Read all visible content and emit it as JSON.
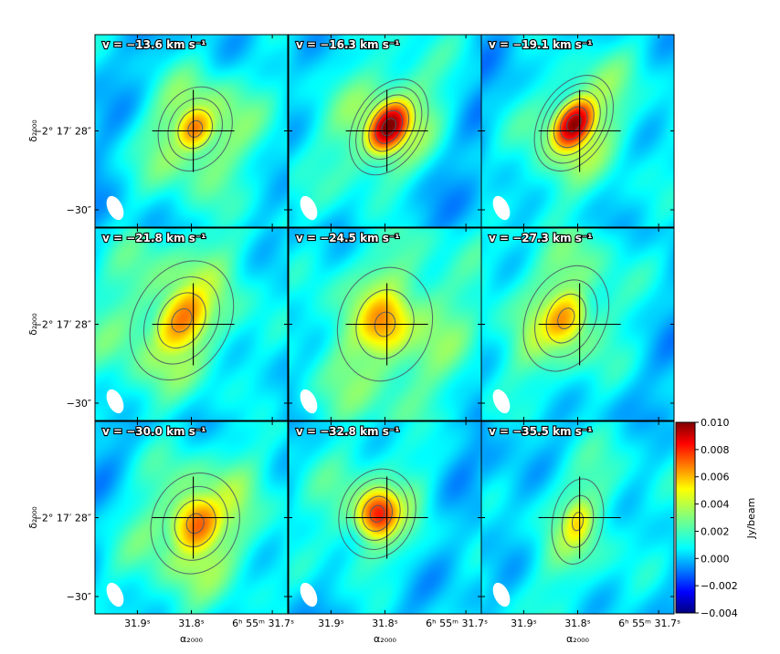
{
  "chart_data": {
    "type": "heatmap",
    "description_units": "channel maps, colour scale in Jy/beam",
    "panels": [
      {
        "label": "v = −13.6 km s⁻¹",
        "velocity_kms": -13.6,
        "peak": 0.0065,
        "peak_x": 0.52,
        "peak_y": 0.49,
        "ext_x": 0.09,
        "ext_y": 0.11,
        "angle": 25,
        "halo": 0.0035
      },
      {
        "label": "v = −16.3 km s⁻¹",
        "velocity_kms": -16.3,
        "peak": 0.0095,
        "peak_x": 0.52,
        "peak_y": 0.48,
        "ext_x": 0.08,
        "ext_y": 0.12,
        "angle": 30,
        "halo": 0.0035
      },
      {
        "label": "v = −19.1 km s⁻¹",
        "velocity_kms": -19.1,
        "peak": 0.0092,
        "peak_x": 0.48,
        "peak_y": 0.46,
        "ext_x": 0.08,
        "ext_y": 0.12,
        "angle": 30,
        "halo": 0.0035
      },
      {
        "label": "v = −21.8 km s⁻¹",
        "velocity_kms": -21.8,
        "peak": 0.0058,
        "peak_x": 0.45,
        "peak_y": 0.48,
        "ext_x": 0.12,
        "ext_y": 0.16,
        "angle": 30,
        "halo": 0.003
      },
      {
        "label": "v = −24.5 km s⁻¹",
        "velocity_kms": -24.5,
        "peak": 0.0052,
        "peak_x": 0.5,
        "peak_y": 0.5,
        "ext_x": 0.13,
        "ext_y": 0.16,
        "angle": 15,
        "halo": 0.003
      },
      {
        "label": "v = −27.3 km s⁻¹",
        "velocity_kms": -27.3,
        "peak": 0.0055,
        "peak_x": 0.44,
        "peak_y": 0.47,
        "ext_x": 0.1,
        "ext_y": 0.14,
        "angle": 25,
        "halo": 0.003
      },
      {
        "label": "v = −30.0 km s⁻¹",
        "velocity_kms": -30.0,
        "peak": 0.0065,
        "peak_x": 0.52,
        "peak_y": 0.53,
        "ext_x": 0.11,
        "ext_y": 0.13,
        "angle": 20,
        "halo": 0.003
      },
      {
        "label": "v = −32.8 km s⁻¹",
        "velocity_kms": -32.8,
        "peak": 0.0075,
        "peak_x": 0.46,
        "peak_y": 0.48,
        "ext_x": 0.09,
        "ext_y": 0.11,
        "angle": 20,
        "halo": 0.003
      },
      {
        "label": "v = −35.5 km s⁻¹",
        "velocity_kms": -35.5,
        "peak": 0.0035,
        "peak_x": 0.5,
        "peak_y": 0.52,
        "ext_x": 0.07,
        "ext_y": 0.12,
        "angle": 10,
        "halo": 0.002
      }
    ],
    "colorbar": {
      "label": "Jy/beam",
      "vmin": -0.004,
      "vmax": 0.01,
      "ticks": [
        "0.010",
        "0.008",
        "0.006",
        "0.004",
        "0.002",
        "0.000",
        "−0.002",
        "−0.004"
      ],
      "tick_values": [
        0.01,
        0.008,
        0.006,
        0.004,
        0.002,
        0.0,
        -0.002,
        -0.004
      ],
      "colormap": "jet"
    },
    "axes": {
      "xlabel": "α₂₀₀₀",
      "ylabel": "δ₂₀₀₀",
      "xticks": [
        "31.9ˢ",
        "31.8ˢ",
        "6ʰ 55ᵐ 31.7ˢ"
      ],
      "yticks": [
        "−2° 17′ 28″",
        "−30″"
      ]
    },
    "marker": "cross at source position",
    "beam": "white filled ellipse, bottom-left"
  }
}
